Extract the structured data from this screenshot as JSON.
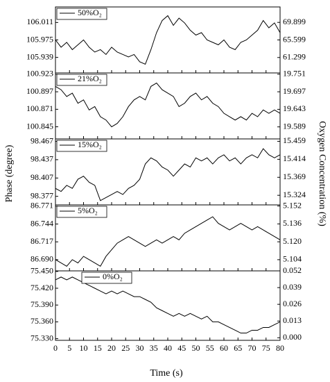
{
  "shared": {
    "x": [
      0,
      2,
      4,
      6,
      8,
      10,
      12,
      14,
      16,
      18,
      20,
      22,
      24,
      26,
      28,
      30,
      32,
      34,
      36,
      38,
      40,
      42,
      44,
      46,
      48,
      50,
      52,
      54,
      56,
      58,
      60,
      62,
      64,
      66,
      68,
      70,
      72,
      74,
      76,
      78,
      80
    ],
    "xlim": [
      0,
      80
    ],
    "xticks": [
      0,
      5,
      10,
      15,
      20,
      25,
      30,
      35,
      40,
      45,
      50,
      55,
      60,
      65,
      70,
      75,
      80
    ],
    "xlabel": "Time (s)",
    "ylabel": "Phase (degree)",
    "y2label": "Oxygen Concentration (%)"
  },
  "chart_data": [
    {
      "type": "line",
      "ylim": [
        105.907,
        106.043
      ],
      "yticks": [
        105.939,
        105.975,
        106.011
      ],
      "y2lim": [
        57.52,
        73.68
      ],
      "y2ticks": [
        61.299,
        65.599,
        69.899
      ],
      "series": [
        {
          "name": "50%O₂",
          "color": "#000000",
          "values": [
            105.975,
            105.96,
            105.97,
            105.955,
            105.965,
            105.975,
            105.96,
            105.95,
            105.955,
            105.945,
            105.96,
            105.95,
            105.945,
            105.94,
            105.945,
            105.93,
            105.925,
            105.955,
            105.99,
            106.015,
            106.025,
            106.005,
            106.02,
            106.01,
            105.995,
            105.985,
            105.99,
            105.975,
            105.97,
            105.965,
            105.975,
            105.96,
            105.955,
            105.97,
            105.975,
            105.985,
            105.995,
            106.015,
            106.0,
            106.01,
            105.99
          ]
        }
      ]
    },
    {
      "type": "line",
      "ylim": [
        100.827,
        100.925
      ],
      "yticks": [
        100.845,
        100.871,
        100.897,
        100.923
      ],
      "y2lim": [
        19.552,
        19.755
      ],
      "y2ticks": [
        19.589,
        19.643,
        19.697,
        19.751
      ],
      "series": [
        {
          "name": "21%O₂",
          "color": "#000000",
          "values": [
            100.905,
            100.9,
            100.89,
            100.895,
            100.88,
            100.885,
            100.87,
            100.875,
            100.86,
            100.855,
            100.845,
            100.85,
            100.86,
            100.875,
            100.885,
            100.89,
            100.885,
            100.905,
            100.91,
            100.9,
            100.895,
            100.89,
            100.875,
            100.88,
            100.89,
            100.895,
            100.885,
            100.89,
            100.88,
            100.875,
            100.865,
            100.86,
            100.855,
            100.86,
            100.855,
            100.865,
            100.86,
            100.87,
            100.865,
            100.87,
            100.865
          ]
        }
      ]
    },
    {
      "type": "line",
      "ylim": [
        98.363,
        98.471
      ],
      "yticks": [
        98.377,
        98.407,
        98.437,
        98.467
      ],
      "y2lim": [
        15.3,
        15.465
      ],
      "y2ticks": [
        15.324,
        15.369,
        15.414,
        15.459
      ],
      "series": [
        {
          "name": "15%O₂",
          "color": "#000000",
          "values": [
            98.39,
            98.385,
            98.395,
            98.39,
            98.405,
            98.41,
            98.4,
            98.395,
            98.37,
            98.375,
            98.38,
            98.385,
            98.38,
            98.39,
            98.395,
            98.405,
            98.43,
            98.44,
            98.435,
            98.425,
            98.42,
            98.41,
            98.42,
            98.43,
            98.425,
            98.44,
            98.435,
            98.44,
            98.43,
            98.44,
            98.445,
            98.435,
            98.44,
            98.43,
            98.44,
            98.445,
            98.44,
            98.455,
            98.445,
            98.44,
            98.445
          ]
        }
      ]
    },
    {
      "type": "line",
      "ylim": [
        86.673,
        86.773
      ],
      "yticks": [
        {
          "value": 86.69,
          "label": "86.690"
        },
        86.717,
        86.744,
        86.771
      ],
      "y2lim": [
        5.094,
        5.153
      ],
      "y2ticks": [
        5.104,
        {
          "value": 5.12,
          "label": "5.120"
        },
        5.136,
        5.152
      ],
      "series": [
        {
          "name": "5%O₂",
          "color": "#000000",
          "values": [
            86.69,
            86.685,
            86.68,
            86.69,
            86.685,
            86.695,
            86.69,
            86.685,
            86.68,
            86.695,
            86.705,
            86.715,
            86.72,
            86.725,
            86.72,
            86.715,
            86.71,
            86.715,
            86.72,
            86.715,
            86.72,
            86.725,
            86.72,
            86.73,
            86.735,
            86.74,
            86.745,
            86.75,
            86.755,
            86.745,
            86.74,
            86.735,
            86.74,
            86.745,
            86.74,
            86.735,
            86.74,
            86.735,
            86.73,
            86.725,
            86.72
          ]
        }
      ]
    },
    {
      "type": "line",
      "ylim": [
        75.327,
        75.451
      ],
      "yticks": [
        {
          "value": 75.33,
          "label": "75.330"
        },
        {
          "value": 75.36,
          "label": "75.360"
        },
        {
          "value": 75.39,
          "label": "75.390"
        },
        {
          "value": 75.42,
          "label": "75.420"
        },
        {
          "value": 75.45,
          "label": "75.450"
        }
      ],
      "y2lim": [
        -0.002,
        0.052
      ],
      "y2ticks": [
        {
          "value": 0,
          "label": "0.000"
        },
        0.013,
        0.026,
        0.039,
        0.052
      ],
      "series": [
        {
          "name": "0%O₂",
          "color": "#000000",
          "values": [
            75.435,
            75.44,
            75.435,
            75.44,
            75.435,
            75.43,
            75.425,
            75.42,
            75.415,
            75.41,
            75.415,
            75.41,
            75.415,
            75.41,
            75.405,
            75.405,
            75.4,
            75.395,
            75.385,
            75.38,
            75.375,
            75.37,
            75.375,
            75.37,
            75.375,
            75.37,
            75.365,
            75.37,
            75.36,
            75.36,
            75.355,
            75.35,
            75.345,
            75.34,
            75.34,
            75.345,
            75.345,
            75.35,
            75.35,
            75.355,
            75.36
          ]
        }
      ]
    }
  ]
}
